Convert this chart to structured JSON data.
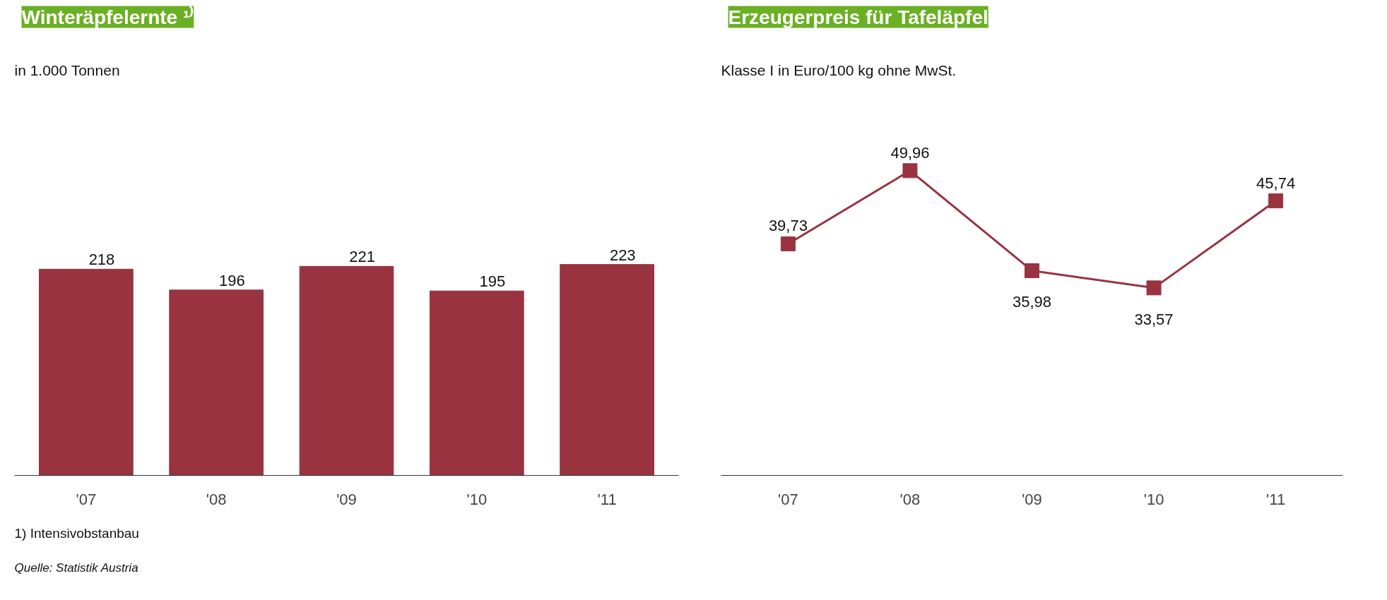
{
  "chart_data": [
    {
      "type": "bar",
      "title": "Winteräpfelernte ¹⁾",
      "subtitle": "in 1.000 Tonnen",
      "categories": [
        "'07",
        "'08",
        "'09",
        "'10",
        "'11"
      ],
      "values": [
        218,
        196,
        221,
        195,
        223
      ],
      "value_labels": [
        "218",
        "196",
        "221",
        "195",
        "223"
      ],
      "color": "#993340",
      "grid": false,
      "annotations": [
        "1) Intensivobstanbau",
        "Quelle: Statistik Austria"
      ]
    },
    {
      "type": "line",
      "title": "Erzeugerpreis für Tafeläpfel",
      "subtitle": "Klasse I in Euro/100 kg ohne MwSt.",
      "categories": [
        "'07",
        "'08",
        "'09",
        "'10",
        "'11"
      ],
      "values": [
        39.73,
        49.96,
        35.98,
        33.57,
        45.74
      ],
      "value_labels": [
        "39,73",
        "49,96",
        "35,98",
        "33,57",
        "45,74"
      ],
      "color": "#993340",
      "marker": "square",
      "line_style": "solid",
      "grid": false
    }
  ]
}
